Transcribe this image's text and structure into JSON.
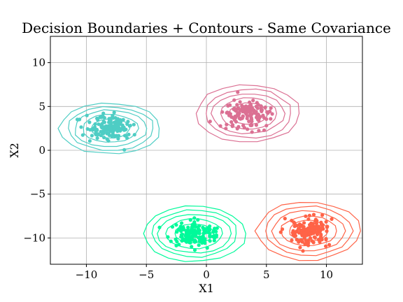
{
  "chart_data": {
    "type": "scatter",
    "title": "Decision Boundaries + Contours - Same Covariance",
    "xlabel": "X1",
    "ylabel": "X2",
    "xlim": [
      -13,
      13
    ],
    "ylim": [
      -13,
      13
    ],
    "xticks": [
      -10,
      -5,
      0,
      5,
      10
    ],
    "xtick_labels": [
      "−10",
      "−5",
      "0",
      "5",
      "10"
    ],
    "yticks": [
      -10,
      -5,
      0,
      5,
      10
    ],
    "ytick_labels": [
      "−10",
      "−5",
      "0",
      "5",
      "10"
    ],
    "grid": true,
    "clusters": [
      {
        "color": "#4ECDC4",
        "center": [
          -8.0,
          2.5
        ],
        "spread": [
          0.9,
          0.7
        ],
        "points": 150,
        "contour_rx": [
          1.6,
          2.3,
          3.0,
          3.6,
          4.2
        ],
        "contour_ry": [
          1.1,
          1.6,
          2.1,
          2.5,
          2.9
        ]
      },
      {
        "color": "#DB7093",
        "center": [
          3.5,
          4.2
        ],
        "spread": [
          0.9,
          0.8
        ],
        "points": 150,
        "contour_rx": [
          1.6,
          2.3,
          3.0,
          3.6,
          4.3
        ],
        "contour_ry": [
          1.2,
          1.8,
          2.3,
          2.8,
          3.3
        ]
      },
      {
        "color": "#00FA9A",
        "center": [
          -1.0,
          -9.5
        ],
        "spread": [
          0.9,
          0.7
        ],
        "points": 150,
        "contour_rx": [
          1.6,
          2.3,
          3.0,
          3.6,
          4.3
        ],
        "contour_ry": [
          1.1,
          1.7,
          2.2,
          2.7,
          3.2
        ]
      },
      {
        "color": "#FF6347",
        "center": [
          8.5,
          -9.2
        ],
        "spread": [
          0.9,
          0.8
        ],
        "points": 150,
        "contour_rx": [
          1.6,
          2.3,
          3.0,
          3.6,
          4.3
        ],
        "contour_ry": [
          1.2,
          1.7,
          2.3,
          2.8,
          3.3
        ]
      }
    ]
  }
}
